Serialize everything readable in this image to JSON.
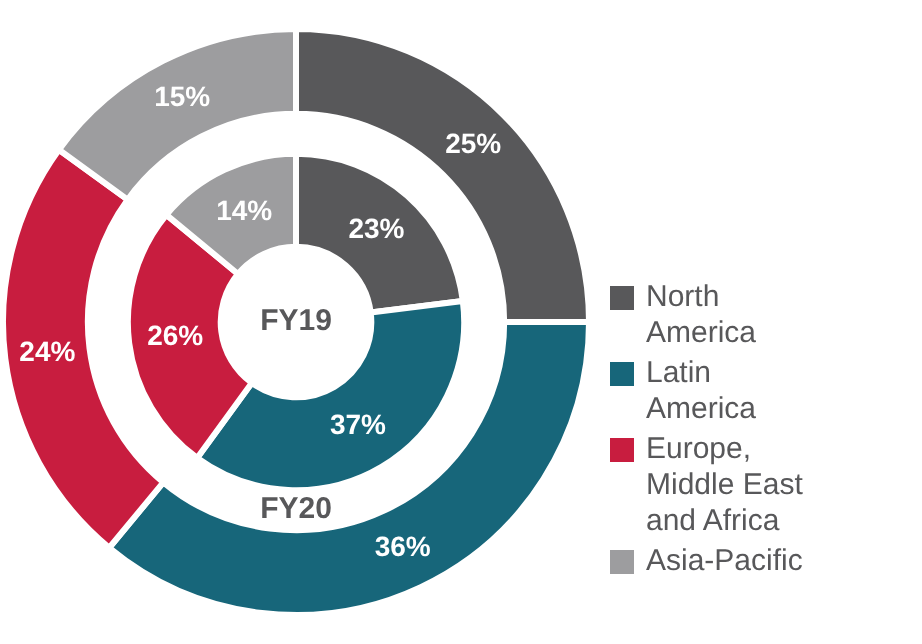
{
  "chart_data": {
    "type": "donut",
    "categories": [
      "North America",
      "Latin America",
      "Europe, Middle East and Africa",
      "Asia-Pacific"
    ],
    "colors": [
      "#58585a",
      "#17667a",
      "#c81d3f",
      "#9d9d9f"
    ],
    "legend": "right",
    "series": [
      {
        "name": "FY20",
        "values": [
          25,
          36,
          24,
          15
        ],
        "value_labels": [
          "25%",
          "36%",
          "24%",
          "15%"
        ]
      },
      {
        "name": "FY19",
        "values": [
          23,
          37,
          26,
          14
        ],
        "value_labels": [
          "23%",
          "37%",
          "26%",
          "14%"
        ]
      }
    ]
  }
}
